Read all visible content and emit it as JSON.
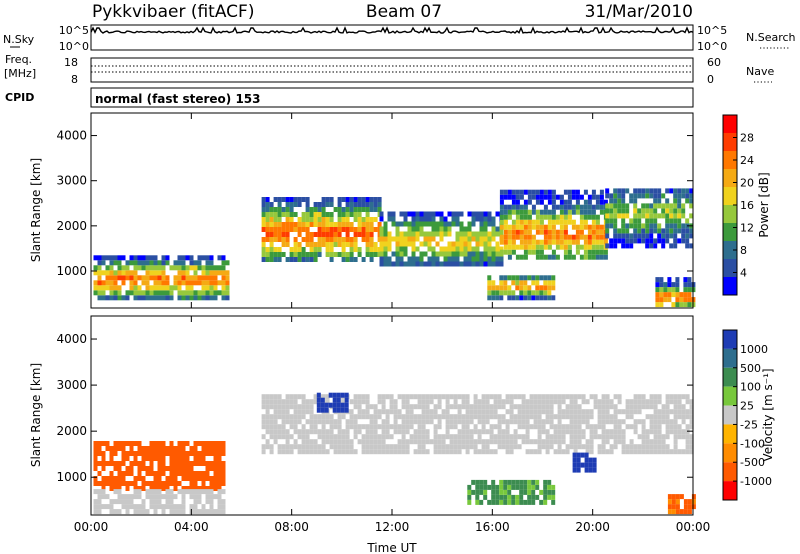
{
  "header": {
    "station": "Pykkvibaer (fitACF)",
    "beam": "Beam 07",
    "date": "31/Mar/2010"
  },
  "summary_panels": {
    "noise": {
      "left_label": "N.Sky",
      "left_ticks": [
        "10^5",
        "10^0"
      ],
      "right_label": "N.Search",
      "right_ticks": [
        "10^5",
        "10^0"
      ]
    },
    "freq": {
      "left_label_1": "Freq.",
      "left_label_2": "[MHz]",
      "left_ticks": [
        "18",
        "8"
      ],
      "right_label": "Nave",
      "right_ticks": [
        "60",
        "0"
      ]
    },
    "cpid": {
      "label": "CPID",
      "text": "normal (fast stereo) 153"
    }
  },
  "time_axis": {
    "xlabel": "Time UT",
    "ticks": [
      "00:00",
      "04:00",
      "08:00",
      "12:00",
      "16:00",
      "20:00",
      "00:00"
    ]
  },
  "colors": {
    "power_scale": [
      "#0000ff",
      "#2b4fa3",
      "#2e6e8e",
      "#3c9a3c",
      "#96c83c",
      "#f0d21e",
      "#f5aa14",
      "#ff7800",
      "#ff3c00",
      "#ff0000"
    ],
    "velocity_scale": [
      "#ff0000",
      "#ff5a00",
      "#ff8c00",
      "#ffb400",
      "#c8c8c8",
      "#78c83c",
      "#3c8c50",
      "#2e6e8e",
      "#1e3cb4"
    ],
    "ground_scatter": "#c8c8c8"
  },
  "chart_data": [
    {
      "type": "heatmap",
      "title": "",
      "quantity": "Power",
      "ylabel": "Slant Range [km]",
      "xlabel": "",
      "ylim": [
        180,
        4500
      ],
      "yticks": [
        1000,
        2000,
        3000,
        4000
      ],
      "xlim_hours": [
        0,
        24
      ],
      "colorbar": {
        "label": "Power [dB]",
        "range": [
          0,
          32
        ],
        "ticks": [
          4,
          8,
          12,
          16,
          20,
          24,
          28
        ]
      },
      "regions": [
        {
          "t_start": 0.1,
          "t_end": 5.4,
          "r_low": 350,
          "r_high": 1300,
          "peak_db": 26,
          "peak_range": 750
        },
        {
          "t_start": 6.8,
          "t_end": 11.5,
          "r_low": 1200,
          "r_high": 2600,
          "peak_db": 27,
          "peak_range": 1780
        },
        {
          "t_start": 11.5,
          "t_end": 16.3,
          "r_low": 1100,
          "r_high": 2300,
          "peak_db": 20,
          "peak_range": 1600
        },
        {
          "t_start": 16.3,
          "t_end": 20.5,
          "r_low": 1250,
          "r_high": 2700,
          "peak_db": 25,
          "peak_range": 1750
        },
        {
          "t_start": 20.5,
          "t_end": 24,
          "r_low": 1500,
          "r_high": 2750,
          "peak_db": 16,
          "peak_range": 2200
        },
        {
          "t_start": 15.8,
          "t_end": 18.4,
          "r_low": 350,
          "r_high": 900,
          "peak_db": 24,
          "peak_range": 600
        },
        {
          "t_start": 22.5,
          "t_end": 24,
          "r_low": 200,
          "r_high": 800,
          "peak_db": 26,
          "peak_range": 350
        }
      ]
    },
    {
      "type": "heatmap",
      "title": "",
      "quantity": "Velocity",
      "ylabel": "Slant Range [km]",
      "xlabel": "Time UT",
      "ylim": [
        180,
        4500
      ],
      "yticks": [
        1000,
        2000,
        3000,
        4000
      ],
      "xlim_hours": [
        0,
        24
      ],
      "colorbar": {
        "label": "Velocity [m s⁻¹]",
        "ticks": [
          "1000",
          "500",
          "100",
          "25",
          "-25",
          "-100",
          "-500",
          "-1000"
        ]
      },
      "regions": [
        {
          "t_start": 0.1,
          "t_end": 5.3,
          "r_low": 700,
          "r_high": 1700,
          "velocity": -300
        },
        {
          "t_start": 0.1,
          "t_end": 5.3,
          "r_low": 200,
          "r_high": 650,
          "velocity": 0,
          "ground_scatter": true
        },
        {
          "t_start": 6.8,
          "t_end": 24,
          "r_low": 1500,
          "r_high": 2750,
          "velocity": 0,
          "ground_scatter": true
        },
        {
          "t_start": 15.0,
          "t_end": 18.5,
          "r_low": 400,
          "r_high": 900,
          "velocity": 150
        },
        {
          "t_start": 9.0,
          "t_end": 10.2,
          "r_low": 2400,
          "r_high": 2800,
          "velocity": 800
        },
        {
          "t_start": 19.2,
          "t_end": 20.0,
          "r_low": 1100,
          "r_high": 1500,
          "velocity": 900
        },
        {
          "t_start": 23.0,
          "t_end": 24,
          "r_low": 200,
          "r_high": 600,
          "velocity": -150
        }
      ]
    }
  ]
}
